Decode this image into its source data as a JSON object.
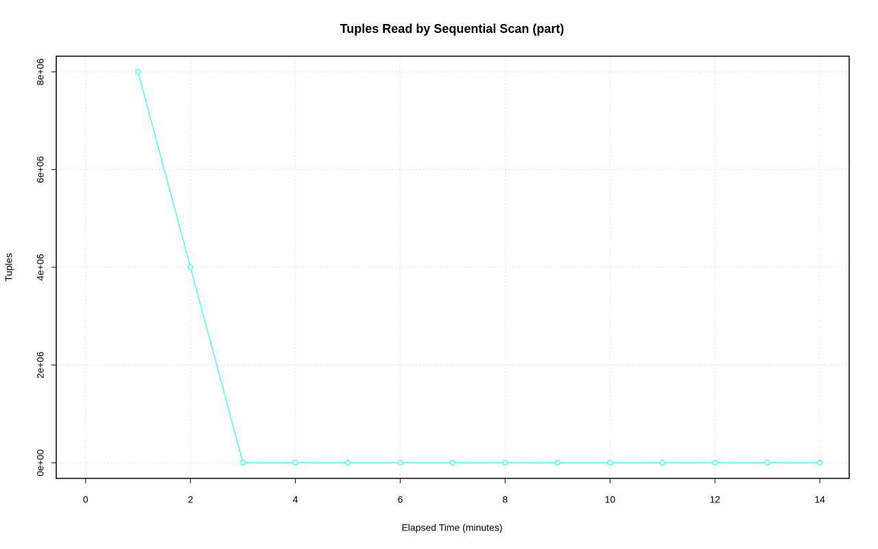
{
  "chart_data": {
    "type": "line",
    "title": "Tuples Read by Sequential Scan (part)",
    "x_label": "Elapsed Time (minutes)",
    "y_label": "Tuples",
    "x": [
      1,
      2,
      3,
      4,
      5,
      6,
      7,
      8,
      9,
      10,
      11,
      12,
      13,
      14
    ],
    "series": [
      {
        "name": "Tuples",
        "color": "#33ffff",
        "values": [
          8000000,
          4000000,
          0,
          0,
          0,
          0,
          0,
          0,
          0,
          0,
          0,
          0,
          0,
          0
        ]
      }
    ],
    "xlim": [
      -0.56,
      14.56
    ],
    "xticks": [
      0,
      2,
      4,
      6,
      8,
      10,
      12,
      14
    ],
    "ylim": [
      -320000,
      8320000
    ],
    "yticks": [
      {
        "value": 0,
        "label": "0e+00"
      },
      {
        "value": 2000000,
        "label": "2e+06"
      },
      {
        "value": 4000000,
        "label": "4e+06"
      },
      {
        "value": 6000000,
        "label": "6e+06"
      },
      {
        "value": 8000000,
        "label": "8e+06"
      }
    ],
    "grid": true
  }
}
